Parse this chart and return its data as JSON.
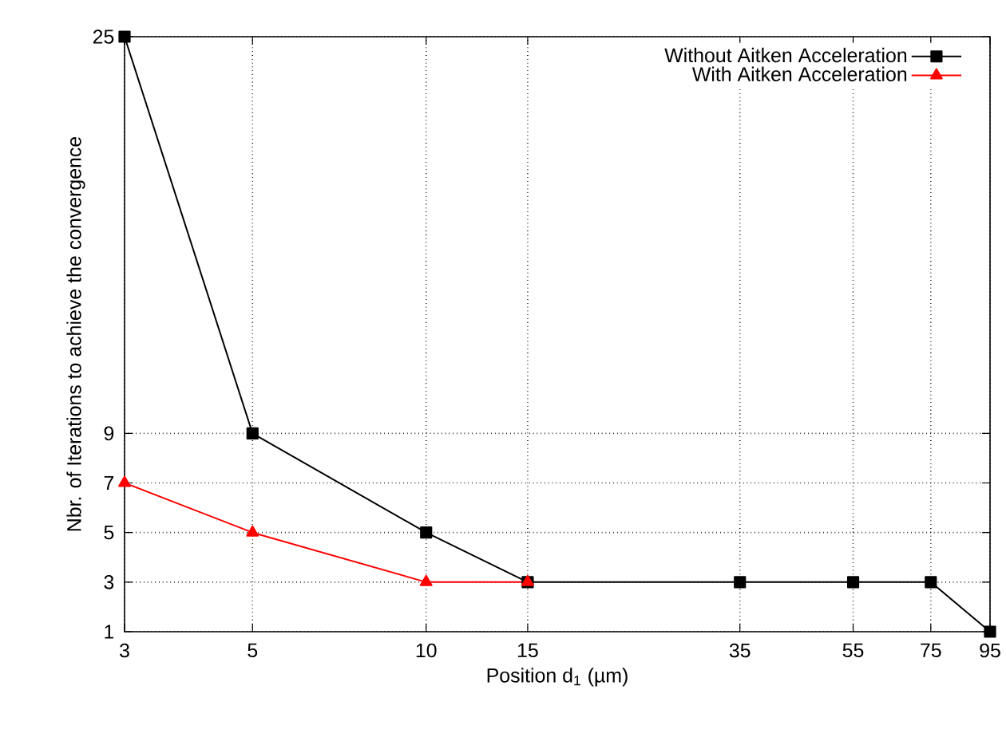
{
  "chart_data": {
    "type": "line",
    "xlabel": "Position d$_{1}$ (µm)",
    "ylabel": "Nbr. of Iterations to achieve the convergence",
    "log": "x",
    "xlim": [
      3,
      95
    ],
    "xticks": [
      3,
      5,
      10,
      15,
      35,
      55,
      75,
      95
    ],
    "ylim": [
      1,
      25
    ],
    "yticks": [
      1,
      3,
      5,
      7,
      9,
      25
    ],
    "grid": true,
    "legend": "top right",
    "series": [
      {
        "name": "Without Aitken Acceleration",
        "color": "#000000",
        "marker": "square",
        "x": [
          3,
          5,
          10,
          15,
          35,
          55,
          75,
          95
        ],
        "values": [
          25,
          9,
          5,
          3,
          3,
          3,
          3,
          1
        ]
      },
      {
        "name": "With Aitken Acceleration",
        "color": "#ff0000",
        "marker": "triangle",
        "x": [
          3,
          5,
          10,
          15
        ],
        "values": [
          7,
          5,
          3,
          3
        ]
      }
    ]
  }
}
